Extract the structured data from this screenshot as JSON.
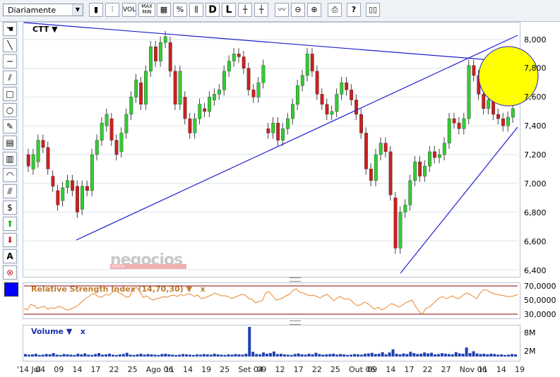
{
  "toolbar": {
    "period": "Diariamente",
    "vol_label": "VOL",
    "max_label": "MAX",
    "min_label": "MIN",
    "percent_label": "%",
    "d_label": "D",
    "l_label": "L",
    "buttons": [
      "candlestick-icon",
      "grid-icon",
      "percent-icon",
      "compare-icon",
      "d-button",
      "l-button",
      "crosshair-icon",
      "cursor-icon",
      "trend-icon",
      "zoom-out-icon",
      "zoom-in-icon",
      "print-icon",
      "help-icon",
      "book-icon"
    ]
  },
  "left_tools": [
    "hand-icon",
    "line-icon",
    "hline-icon",
    "parallel-icon",
    "rectangle-icon",
    "circle-icon",
    "pencil-icon",
    "fib-icon",
    "fib2-icon",
    "arc-icon",
    "fan-icon",
    "gann-icon",
    "arrow-up-icon",
    "arrow-down-icon",
    "text-icon",
    "delete-icon"
  ],
  "symbol": "CTT",
  "watermark": "negocios",
  "watermark_sub": "online",
  "colors": {
    "up": "#33cc33",
    "down": "#cc1f1f",
    "trend": "#1f1fcc",
    "rsi": "#e8862a",
    "volume": "#1f3fb0",
    "highlight": "#ffff00"
  },
  "price_axis": [
    "8,000",
    "7,800",
    "7,600",
    "7,400",
    "7,200",
    "7,000",
    "6,800",
    "6,600",
    "6,400"
  ],
  "rsi": {
    "label": "Relative Strength Index (14,70,30) ▼",
    "close": "x",
    "axis": [
      "70,0000",
      "50,0000",
      "30,0000"
    ],
    "values": [
      38,
      36,
      44,
      42,
      38,
      40,
      41,
      37,
      39,
      38,
      41,
      40,
      37,
      36,
      38,
      40,
      43,
      48,
      52,
      55,
      59,
      58,
      54,
      55,
      58,
      57,
      61,
      63,
      60,
      58,
      54,
      55,
      64,
      68,
      63,
      54,
      56,
      52,
      50,
      52,
      53,
      55,
      54,
      56,
      57,
      55,
      58,
      56,
      59,
      58,
      55,
      57,
      52,
      53,
      55,
      57,
      60,
      58,
      56,
      56,
      55,
      52,
      54,
      56,
      58,
      57,
      52,
      51,
      46,
      48,
      49,
      60,
      62,
      56,
      50,
      51,
      53,
      56,
      58,
      64,
      66,
      61,
      60,
      58,
      56,
      57,
      55,
      53,
      56,
      58,
      54,
      49,
      53,
      55,
      51,
      52,
      50,
      45,
      42,
      44,
      47,
      45,
      41,
      37,
      40,
      36,
      38,
      42,
      45,
      43,
      40,
      42,
      46,
      48,
      50,
      41,
      34,
      30,
      38,
      40,
      44,
      49,
      53,
      55,
      52,
      54,
      56,
      52,
      53,
      57,
      60,
      58,
      55,
      52,
      60,
      65,
      64,
      61,
      59,
      58,
      57,
      56,
      55,
      55,
      56,
      58
    ]
  },
  "volume": {
    "label": "Volume ▼",
    "close": "x",
    "axis": [
      "8M",
      "2M"
    ],
    "values": [
      0.8,
      0.6,
      0.7,
      0.9,
      0.5,
      0.6,
      0.8,
      0.7,
      1.1,
      0.6,
      0.5,
      0.8,
      0.7,
      0.6,
      0.5,
      0.9,
      0.7,
      1.0,
      0.6,
      0.5,
      0.8,
      1.1,
      0.6,
      0.7,
      0.9,
      0.6,
      0.5,
      0.7,
      0.8,
      1.2,
      0.6,
      0.5,
      0.7,
      0.9,
      0.6,
      0.8,
      0.7,
      0.6,
      0.5,
      0.8,
      0.9,
      0.7,
      0.6,
      0.5,
      0.6,
      0.8,
      0.7,
      0.6,
      0.5,
      0.7,
      0.6,
      0.8,
      0.7,
      0.6,
      0.9,
      0.7,
      0.6,
      0.5,
      0.7,
      0.6,
      0.8,
      0.7,
      0.6,
      0.9,
      9.5,
      1.5,
      0.8,
      0.7,
      1.3,
      0.9,
      1.1,
      1.6,
      0.8,
      0.9,
      0.7,
      0.6,
      0.5,
      0.8,
      1.0,
      0.7,
      0.6,
      0.9,
      0.7,
      1.2,
      0.8,
      0.6,
      0.7,
      0.8,
      0.9,
      0.6,
      0.8,
      0.7,
      0.5,
      0.6,
      0.8,
      0.7,
      0.6,
      0.9,
      1.0,
      1.2,
      0.8,
      0.9,
      1.4,
      0.7,
      1.3,
      2.3,
      0.9,
      0.7,
      1.0,
      0.8,
      1.5,
      1.1,
      0.8,
      0.9,
      1.3,
      1.0,
      1.2,
      0.7,
      0.8,
      1.1,
      0.9,
      0.8,
      0.7,
      1.4,
      1.0,
      0.9,
      2.9,
      1.1,
      1.7,
      1.0,
      0.8,
      0.9,
      0.7,
      0.9,
      0.8,
      0.6,
      0.7,
      0.5,
      0.6,
      0.8,
      0.7
    ]
  },
  "x_axis": [
    "'14 Jul",
    "04",
    "09",
    "14",
    "17",
    "22",
    "25",
    "Ago 06",
    "11",
    "14",
    "19",
    "25",
    "Set 04",
    "09",
    "12",
    "17",
    "22",
    "25",
    "Out 06",
    "09",
    "14",
    "17",
    "22",
    "27",
    "Nov 06",
    "11",
    "14",
    "19"
  ],
  "candles": [
    [
      7.2,
      7.12
    ],
    [
      7.1,
      7.2
    ],
    [
      7.15,
      7.3
    ],
    [
      7.3,
      7.25
    ],
    [
      7.25,
      7.1
    ],
    [
      7.05,
      6.98
    ],
    [
      6.95,
      6.85
    ],
    [
      6.88,
      6.97
    ],
    [
      6.97,
      7.02
    ],
    [
      7.02,
      6.95
    ],
    [
      6.98,
      6.8
    ],
    [
      6.82,
      6.98
    ],
    [
      6.98,
      6.95
    ],
    [
      6.95,
      7.2
    ],
    [
      7.2,
      7.3
    ],
    [
      7.3,
      7.42
    ],
    [
      7.4,
      7.48
    ],
    [
      7.45,
      7.3
    ],
    [
      7.3,
      7.2
    ],
    [
      7.22,
      7.35
    ],
    [
      7.35,
      7.48
    ],
    [
      7.48,
      7.6
    ],
    [
      7.6,
      7.72
    ],
    [
      7.7,
      7.55
    ],
    [
      7.55,
      7.78
    ],
    [
      7.78,
      7.95
    ],
    [
      7.95,
      7.85
    ],
    [
      7.85,
      7.98
    ],
    [
      7.98,
      8.02
    ],
    [
      7.98,
      7.78
    ],
    [
      7.78,
      7.55
    ],
    [
      7.55,
      7.78
    ],
    [
      7.6,
      7.45
    ],
    [
      7.45,
      7.35
    ],
    [
      7.35,
      7.45
    ],
    [
      7.45,
      7.55
    ],
    [
      7.52,
      7.5
    ],
    [
      7.5,
      7.6
    ],
    [
      7.58,
      7.62
    ],
    [
      7.62,
      7.65
    ],
    [
      7.65,
      7.78
    ],
    [
      7.78,
      7.85
    ],
    [
      7.85,
      7.9
    ],
    [
      7.9,
      7.88
    ],
    [
      7.88,
      7.8
    ],
    [
      7.8,
      7.65
    ],
    [
      7.65,
      7.6
    ],
    [
      7.6,
      7.7
    ],
    [
      7.7,
      7.82
    ],
    [
      7.38,
      7.35
    ],
    [
      7.35,
      7.42
    ],
    [
      7.42,
      7.3
    ],
    [
      7.3,
      7.38
    ],
    [
      7.38,
      7.45
    ],
    [
      7.45,
      7.55
    ],
    [
      7.55,
      7.68
    ],
    [
      7.68,
      7.75
    ],
    [
      7.75,
      7.9
    ],
    [
      7.9,
      7.78
    ],
    [
      7.78,
      7.62
    ],
    [
      7.62,
      7.55
    ],
    [
      7.55,
      7.48
    ],
    [
      7.48,
      7.5
    ],
    [
      7.5,
      7.62
    ],
    [
      7.62,
      7.7
    ],
    [
      7.7,
      7.65
    ],
    [
      7.65,
      7.58
    ],
    [
      7.58,
      7.48
    ],
    [
      7.48,
      7.35
    ],
    [
      7.35,
      7.1
    ],
    [
      7.1,
      7.02
    ],
    [
      7.02,
      7.2
    ],
    [
      7.2,
      7.28
    ],
    [
      7.28,
      7.22
    ],
    [
      7.22,
      6.92
    ],
    [
      6.9,
      6.55
    ],
    [
      6.55,
      6.8
    ],
    [
      6.8,
      6.85
    ],
    [
      6.85,
      7.02
    ],
    [
      7.02,
      7.15
    ],
    [
      7.15,
      7.05
    ],
    [
      7.05,
      7.12
    ],
    [
      7.12,
      7.22
    ],
    [
      7.22,
      7.18
    ],
    [
      7.18,
      7.2
    ],
    [
      7.2,
      7.28
    ],
    [
      7.28,
      7.45
    ],
    [
      7.45,
      7.42
    ],
    [
      7.42,
      7.38
    ],
    [
      7.38,
      7.45
    ],
    [
      7.45,
      7.82
    ],
    [
      7.82,
      7.75
    ],
    [
      7.75,
      7.62
    ],
    [
      7.62,
      7.52
    ],
    [
      7.52,
      7.58
    ],
    [
      7.58,
      7.48
    ],
    [
      7.48,
      7.45
    ],
    [
      7.45,
      7.4
    ],
    [
      7.4,
      7.46
    ],
    [
      7.46,
      7.52
    ]
  ]
}
